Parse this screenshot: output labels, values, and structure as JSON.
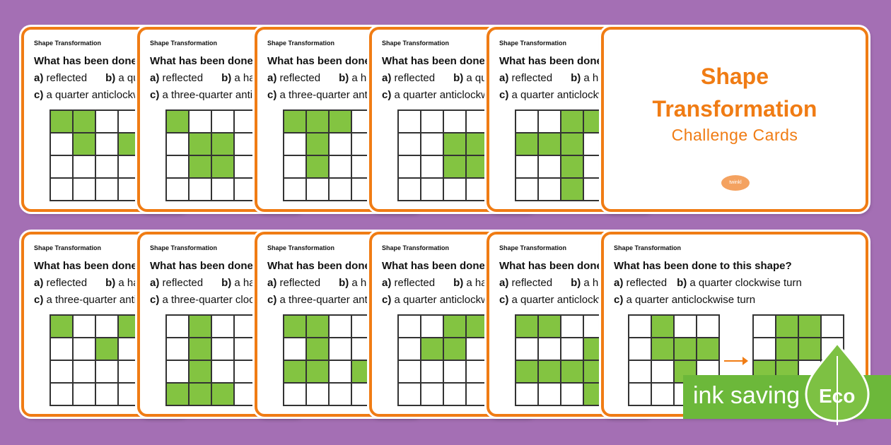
{
  "card_kicker": "Shape Transformation",
  "title_card": {
    "line1": "Shape",
    "line2": "Transformation",
    "line3": "Challenge Cards",
    "logo_text": "twinkl"
  },
  "cards": [
    {
      "question": "What has been done to this shape?",
      "a": "reflected",
      "b": "a quarter clockwise turn",
      "c": "a quarter anticlockwise turn"
    },
    {
      "question": "What has been done to this shape?",
      "a": "reflected",
      "b": "a half turn",
      "c": "a three-quarter anticlockwise turn"
    },
    {
      "question": "What has been done to this shape?",
      "a": "reflected",
      "b": "a half turn",
      "c": "a three-quarter anticlockwise turn"
    },
    {
      "question": "What has been done to this shape?",
      "a": "reflected",
      "b": "a quarter clockwise turn",
      "c": "a quarter anticlockwise turn"
    },
    {
      "question": "What has been done to this shape?",
      "a": "reflected",
      "b": "a half turn",
      "c": "a quarter anticlockwise turn"
    },
    {
      "question": "What has been done to this shape?",
      "a": "reflected",
      "b": "a half turn",
      "c": "a three-quarter anticlockwise turn"
    },
    {
      "question": "What has been done to this shape?",
      "a": "reflected",
      "b": "a half turn",
      "c": "a three-quarter clockwise turn"
    },
    {
      "question": "What has been done to this shape?",
      "a": "reflected",
      "b": "a half turn",
      "c": "a three-quarter anticlockwise turn"
    },
    {
      "question": "What has been done to this shape?",
      "a": "reflected",
      "b": "a half turn",
      "c": "a quarter anticlockwise turn"
    },
    {
      "question": "What has been done to this shape?",
      "a": "reflected",
      "b": "a half turn",
      "c": "a quarter anticlockwise turn"
    },
    {
      "question": "What has been done to this shape?",
      "a": "reflected",
      "b": "a quarter clockwise turn",
      "c": "a quarter anticlockwise turn"
    }
  ],
  "option_letters": {
    "a": "a)",
    "b": "b)",
    "c": "c)"
  },
  "eco_badge": {
    "text": "ink saving",
    "label": "Eco"
  },
  "colors": {
    "background": "#a46fb4",
    "accent": "#f07c14",
    "shape_fill": "#83c441",
    "eco_green": "#6cb83a"
  }
}
